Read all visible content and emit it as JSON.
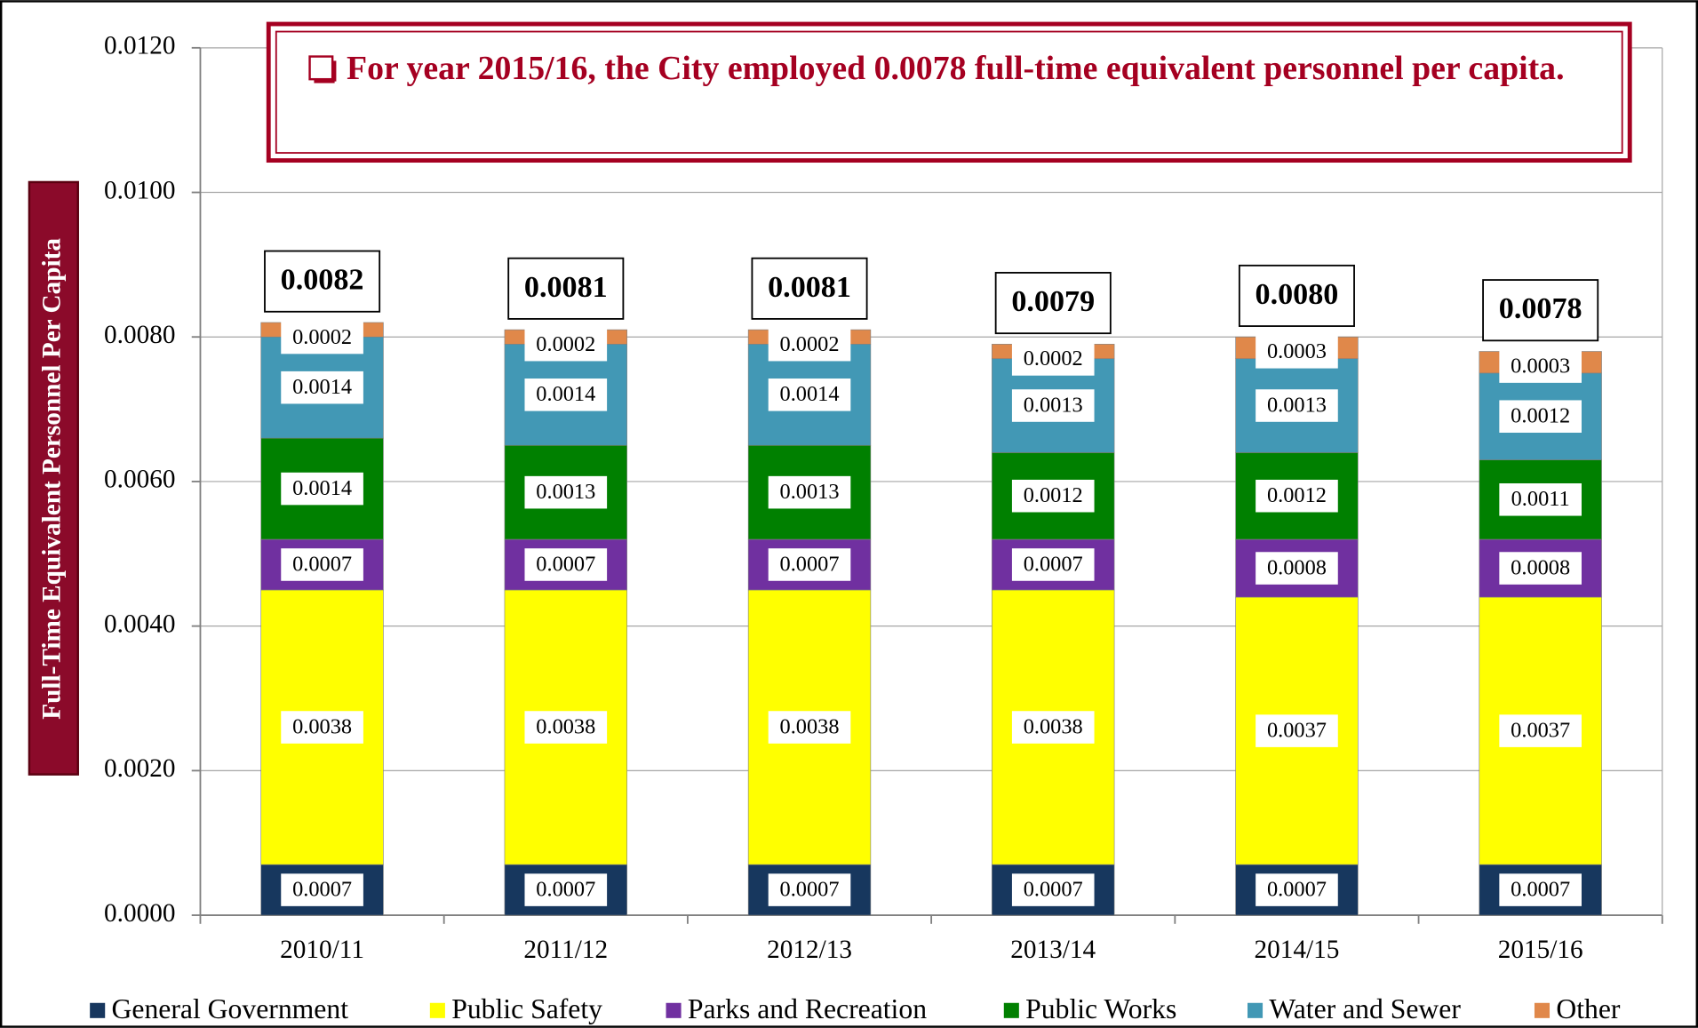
{
  "chart_data": {
    "type": "stacked_bar",
    "y_axis_label": "Full-Time Equivalent Personnel Per Capita",
    "annotation": "For year 2015/16, the City employed 0.0078 full-time equivalent personnel per capita.",
    "categories": [
      "2010/11",
      "2011/12",
      "2012/13",
      "2013/14",
      "2014/15",
      "2015/16"
    ],
    "series": [
      {
        "name": "General Government",
        "color": "#17375e",
        "values": [
          0.0007,
          0.0007,
          0.0007,
          0.0007,
          0.0007,
          0.0007
        ]
      },
      {
        "name": "Public Safety",
        "color": "#ffff00",
        "values": [
          0.0038,
          0.0038,
          0.0038,
          0.0038,
          0.0037,
          0.0037
        ]
      },
      {
        "name": "Parks and Recreation",
        "color": "#7030a0",
        "values": [
          0.0007,
          0.0007,
          0.0007,
          0.0007,
          0.0008,
          0.0008
        ]
      },
      {
        "name": "Public Works",
        "color": "#008000",
        "values": [
          0.0014,
          0.0013,
          0.0013,
          0.0012,
          0.0012,
          0.0011
        ]
      },
      {
        "name": "Water and Sewer",
        "color": "#4298b5",
        "values": [
          0.0014,
          0.0014,
          0.0014,
          0.0013,
          0.0013,
          0.0012
        ]
      },
      {
        "name": "Other",
        "color": "#e0884a",
        "values": [
          0.0002,
          0.0002,
          0.0002,
          0.0002,
          0.0003,
          0.0003
        ]
      }
    ],
    "totals": [
      0.0082,
      0.0081,
      0.0081,
      0.0079,
      0.008,
      0.0078
    ],
    "total_labels": [
      "0.0082",
      "0.0081",
      "0.0081",
      "0.0079",
      "0.0080",
      "0.0078"
    ],
    "ylim": [
      0,
      0.012
    ],
    "yticks": [
      {
        "value": 0,
        "label": "0.0000"
      },
      {
        "value": 0.002,
        "label": "0.0020"
      },
      {
        "value": 0.004,
        "label": "0.0040"
      },
      {
        "value": 0.006,
        "label": "0.0060"
      },
      {
        "value": 0.008,
        "label": "0.0080"
      },
      {
        "value": 0.01,
        "label": "0.0100"
      },
      {
        "value": 0.012,
        "label": "0.0120"
      }
    ],
    "grid": true,
    "legend": "bottom"
  }
}
